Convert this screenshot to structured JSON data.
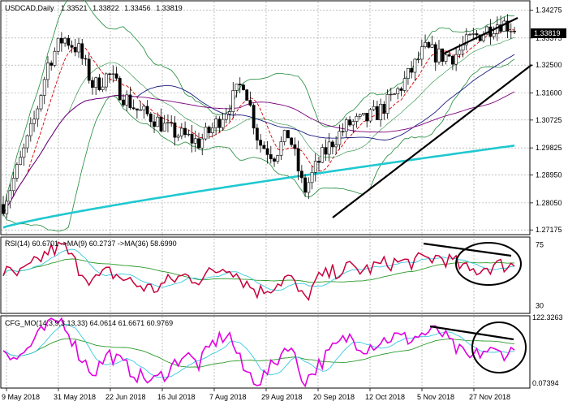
{
  "header": {
    "symbol": "USDCAD,Daily",
    "open": "1.33521",
    "high": "1.33822",
    "low": "1.33456",
    "close": "1.33819"
  },
  "colors": {
    "up_candle": "#000000",
    "down_candle": "#000000",
    "ma_fast": "#d40000",
    "ma_mid": "#1a1a80",
    "ma_slow": "#7a007a",
    "ma_200": "#20c8d0",
    "bollinger": "#1f8a3a",
    "rsi_line": "#c8003c",
    "rsi_ma_fast": "#38c8e0",
    "rsi_ma_slow": "#2a9a2a",
    "cfg_line": "#e000e0",
    "cfg_sig1": "#38c8e0",
    "cfg_sig2": "#2a9a2a",
    "grid": "#9a9a9a",
    "annotation": "#000000"
  },
  "chart_data": [
    {
      "type": "candlestick",
      "title": "USDCAD,Daily",
      "current_price_label": "1.33819",
      "y_ticks": [
        "1.34275",
        "1.33375",
        "1.32500",
        "1.31600",
        "1.30725",
        "1.29825",
        "1.28950",
        "1.28050",
        "1.27175"
      ],
      "ylim": [
        1.2705,
        1.3455
      ],
      "x_ticks": [
        "9 May 2018",
        "31 May 2018",
        "22 Jun 2018",
        "16 Jul 2018",
        "7 Aug 2018",
        "29 Aug 2018",
        "20 Sep 2018",
        "12 Oct 2018",
        "5 Nov 2018",
        "27 Nov 2018"
      ],
      "anchor_closes": [
        1.28,
        1.292,
        1.306,
        1.326,
        1.334,
        1.33,
        1.318,
        1.322,
        1.315,
        1.31,
        1.308,
        1.304,
        1.302,
        1.3,
        1.305,
        1.312,
        1.32,
        1.3,
        1.296,
        1.303,
        1.284,
        1.294,
        1.301,
        1.306,
        1.307,
        1.31,
        1.315,
        1.322,
        1.33,
        1.328,
        1.328,
        1.333,
        1.336,
        1.339,
        1.337
      ],
      "overlays": [
        "MA fast",
        "MA mid",
        "MA slow",
        "MA 200",
        "Bollinger Bands"
      ],
      "annotations": [
        "upper trendline (resistance)",
        "lower trendline (support)"
      ]
    },
    {
      "type": "line",
      "title": "RSI(14) 60.6701 ->MA(9) 60.2737 ->MA(36) 58.6990",
      "series": [
        {
          "name": "RSI(14)",
          "last": 60.6701
        },
        {
          "name": "MA(9)",
          "last": 60.2737
        },
        {
          "name": "MA(36)",
          "last": 58.699
        }
      ],
      "y_ticks": [
        "75",
        "30"
      ],
      "ylim": [
        25,
        80
      ],
      "anchor_values": [
        55,
        52,
        60,
        70,
        74,
        58,
        48,
        55,
        50,
        45,
        42,
        48,
        52,
        50,
        55,
        60,
        48,
        40,
        45,
        52,
        34,
        50,
        55,
        58,
        56,
        60,
        62,
        62,
        64,
        66,
        62,
        55,
        58,
        60,
        60
      ],
      "annotations": [
        "descending trendline over RSI peaks",
        "ellipse around recent RSI"
      ]
    },
    {
      "type": "line",
      "title": "CFG_MO(14,3,9,3,13,33) 64.0614 61.6671 60.9769",
      "series": [
        {
          "name": "CFG_MO",
          "last": 64.0614
        },
        {
          "name": "Signal 1",
          "last": 61.6671
        },
        {
          "name": "Signal 2",
          "last": 60.9769
        }
      ],
      "y_ticks": [
        "122.3263",
        "0.07394"
      ],
      "ylim": [
        0,
        125
      ],
      "anchor_values": [
        70,
        50,
        80,
        110,
        120,
        60,
        25,
        60,
        40,
        20,
        10,
        30,
        60,
        40,
        80,
        95,
        30,
        10,
        40,
        80,
        8,
        40,
        70,
        90,
        70,
        80,
        90,
        85,
        95,
        100,
        70,
        50,
        65,
        60,
        64
      ],
      "annotations": [
        "descending trendline over CFG_MO peaks",
        "ellipse around recent CFG_MO"
      ]
    }
  ]
}
